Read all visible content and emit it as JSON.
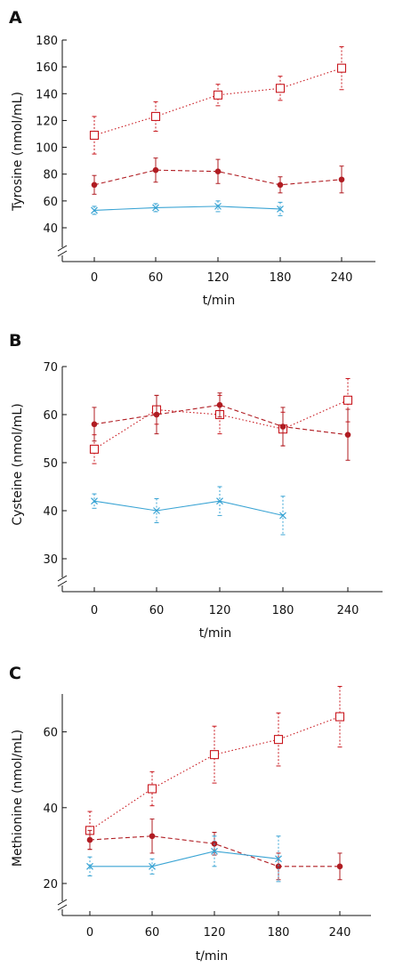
{
  "colors": {
    "red": "#c8161d",
    "dark_red": "#b01c22",
    "blue": "#3aa4d4",
    "axis": "#111111"
  },
  "chart_data": [
    {
      "type": "line",
      "panel_label": "A",
      "ylabel": "Tyrosine (nmol/mL)",
      "xlabel": "t/min",
      "x_ticks": [
        "0",
        "60",
        "120",
        "180",
        "240"
      ],
      "y_ticks": [
        "40",
        "60",
        "80",
        "100",
        "120",
        "140",
        "160",
        "180"
      ],
      "ylim": [
        40,
        180
      ],
      "axis_break": true,
      "series": [
        {
          "marker": "open-square",
          "line": "dotted",
          "color": "#c8161d",
          "x": [
            0,
            60,
            120,
            180,
            240
          ],
          "y": [
            109,
            123,
            139,
            144,
            159
          ],
          "err": [
            14,
            11,
            8,
            9,
            16
          ]
        },
        {
          "marker": "filled-circle",
          "line": "dashed",
          "color": "#b01c22",
          "x": [
            0,
            60,
            120,
            180,
            240
          ],
          "y": [
            72,
            83,
            82,
            72,
            76
          ],
          "err": [
            7,
            9,
            9,
            6,
            10
          ]
        },
        {
          "marker": "x",
          "line": "solid",
          "color": "#3aa4d4",
          "x": [
            0,
            60,
            120,
            180
          ],
          "y": [
            53,
            55,
            56,
            54
          ],
          "err": [
            3,
            3,
            4,
            5
          ]
        }
      ]
    },
    {
      "type": "line",
      "panel_label": "B",
      "ylabel": "Cysteine (nmol/mL)",
      "xlabel": "t/min",
      "x_ticks": [
        "0",
        "60",
        "120",
        "180",
        "240"
      ],
      "y_ticks": [
        "30",
        "40",
        "50",
        "60",
        "70"
      ],
      "ylim": [
        30,
        70
      ],
      "axis_break": true,
      "series": [
        {
          "marker": "open-square",
          "line": "dotted",
          "color": "#c8161d",
          "x": [
            0,
            60,
            120,
            180,
            240
          ],
          "y": [
            52.8,
            61,
            60,
            57,
            63
          ],
          "err": [
            3,
            3,
            4,
            3.5,
            4.5
          ]
        },
        {
          "marker": "filled-circle",
          "line": "dashed",
          "color": "#b01c22",
          "x": [
            0,
            60,
            120,
            180,
            240
          ],
          "y": [
            58,
            60,
            62,
            57.5,
            55.8
          ],
          "err": [
            3.5,
            4,
            2.5,
            4,
            5.3
          ]
        },
        {
          "marker": "x",
          "line": "solid",
          "color": "#3aa4d4",
          "x": [
            0,
            60,
            120,
            180
          ],
          "y": [
            42,
            40,
            42,
            39
          ],
          "err": [
            1.5,
            2.5,
            3,
            4
          ]
        }
      ]
    },
    {
      "type": "line",
      "panel_label": "C",
      "ylabel": "Methionine (nmol/mL)",
      "xlabel": "t/min",
      "x_ticks": [
        "0",
        "60",
        "120",
        "180",
        "240"
      ],
      "y_ticks": [
        "20",
        "40",
        "60"
      ],
      "ylim": [
        20,
        70
      ],
      "axis_break": true,
      "series": [
        {
          "marker": "open-square",
          "line": "dotted",
          "color": "#c8161d",
          "x": [
            0,
            60,
            120,
            180,
            240
          ],
          "y": [
            34,
            45,
            54,
            58,
            64
          ],
          "err": [
            5,
            4.5,
            7.5,
            7,
            8
          ]
        },
        {
          "marker": "filled-circle",
          "line": "dashed",
          "color": "#b01c22",
          "x": [
            0,
            60,
            120,
            180,
            240
          ],
          "y": [
            31.5,
            32.5,
            30.5,
            24.5,
            24.5
          ],
          "err": [
            2.5,
            4.5,
            3,
            3.5,
            3.5
          ]
        },
        {
          "marker": "x",
          "line": "solid",
          "color": "#3aa4d4",
          "x": [
            0,
            60,
            120,
            180
          ],
          "y": [
            24.5,
            24.5,
            28.5,
            26.5
          ],
          "err": [
            2.5,
            2,
            4,
            6
          ]
        }
      ]
    }
  ]
}
